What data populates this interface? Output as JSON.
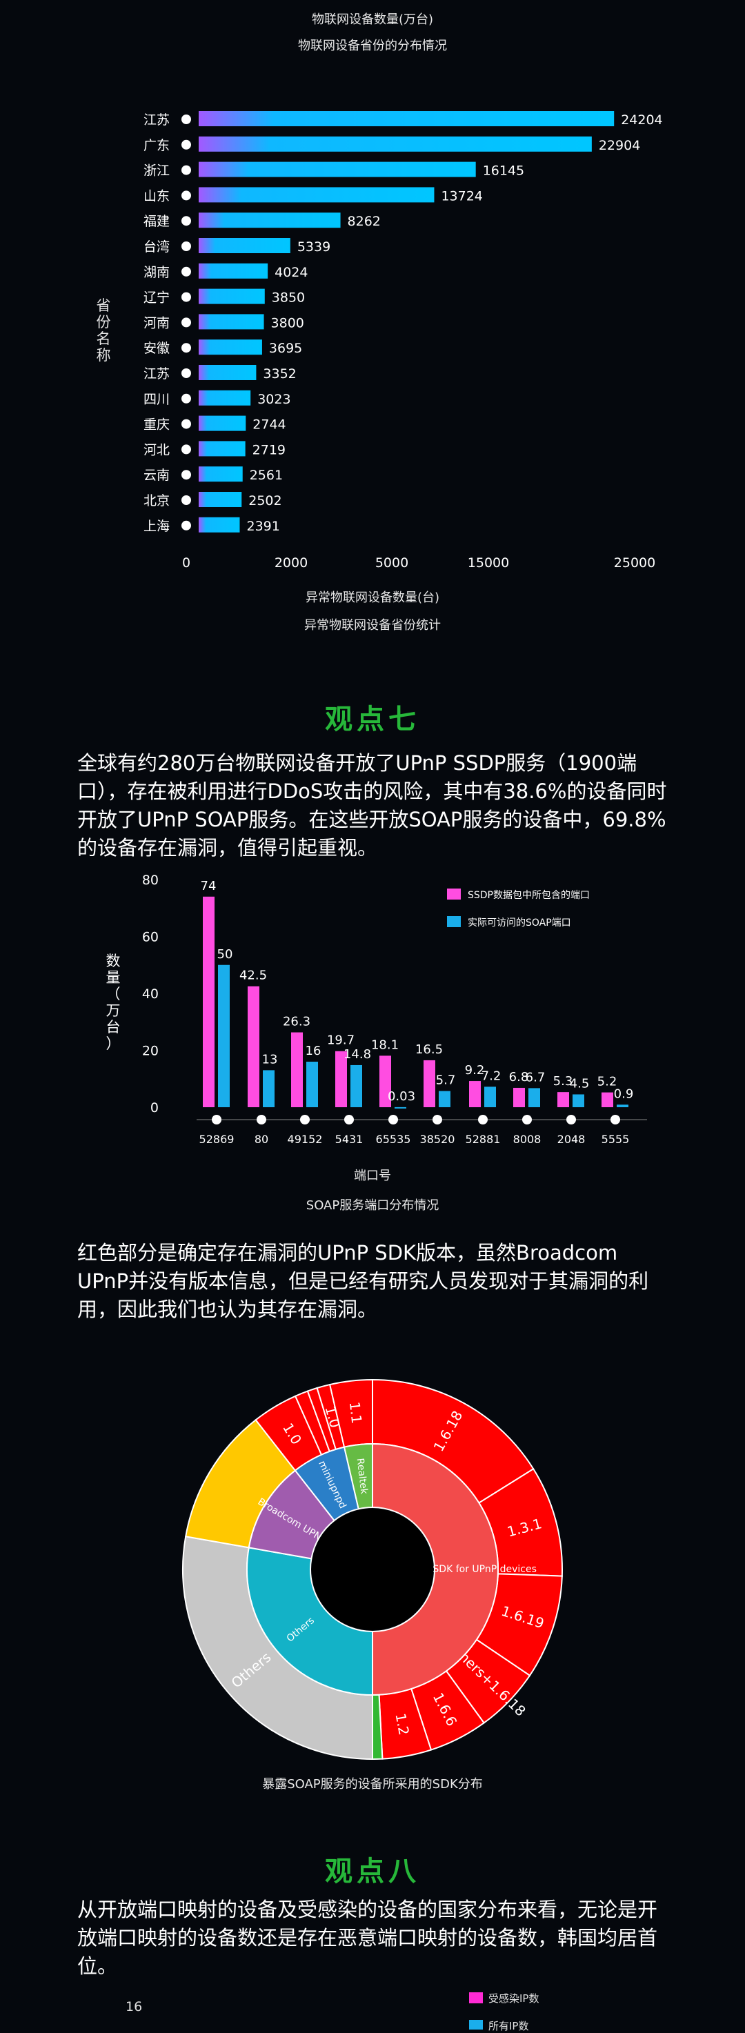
{
  "chart1": {
    "title_top": "物联网设备数量(万台)",
    "subtitle_top": "物联网设备省份的分布情况",
    "ylabel": "省份名称",
    "xlabel": "异常物联网设备数量(台)",
    "caption": "异常物联网设备省份统计",
    "colors": {
      "start": "#a259ff",
      "end": "#00c6ff"
    }
  },
  "heading7": "观点七",
  "para7": "全球有约280万台物联网设备开放了UPnP SSDP服务（1900端口），存在被利用进行DDoS攻击的风险，其中有38.6%的设备同时开放了UPnP SOAP服务。在这些开放SOAP服务的设备中，69.8%的设备存在漏洞，值得引起重视。",
  "chart2": {
    "ylabel": "数量（万台）",
    "xlabel": "端口号",
    "caption": "SOAP服务端口分布情况",
    "colors": {
      "ssdp": "#ff4de1",
      "soap": "#1aaeeb"
    }
  },
  "para_sdk": "红色部分是确定存在漏洞的UPnP SDK版本，虽然Broadcom UPnP并没有版本信息，但是已经有研究人员发现对于其漏洞的利用，因此我们也认为其存在漏洞。",
  "chart3": {
    "caption": "暴露SOAP服务的设备所采用的SDK分布"
  },
  "heading8": "观点八",
  "para8": "从开放端口映射的设备及受感染的设备的国家分布来看，无论是开放端口映射的设备数还是存在恶意端口映射的设备数，韩国均居首位。",
  "chart4": {
    "y_top_tick": "16",
    "legend": [
      "受感染IP数",
      "所有IP数"
    ],
    "colors": {
      "infected": "#ff2ad4",
      "all": "#1aaeeb"
    }
  },
  "chart_data": [
    {
      "type": "bar",
      "orientation": "horizontal",
      "categories": [
        "江苏",
        "广东",
        "浙江",
        "山东",
        "福建",
        "台湾",
        "湖南",
        "辽宁",
        "河南",
        "安徽",
        "江苏",
        "四川",
        "重庆",
        "河北",
        "云南",
        "北京",
        "上海"
      ],
      "values": [
        24204,
        22904,
        16145,
        13724,
        8262,
        5339,
        4024,
        3850,
        3800,
        3695,
        3352,
        3023,
        2744,
        2719,
        2561,
        2502,
        2391
      ],
      "x_ticks": [
        "0",
        "2000",
        "5000",
        "15000",
        "25000"
      ],
      "title": "物联网设备数量(万台)",
      "xlabel": "异常物联网设备数量(台)",
      "ylabel": "省份名称"
    },
    {
      "type": "bar",
      "categories": [
        "52869",
        "80",
        "49152",
        "5431",
        "65535",
        "38520",
        "52881",
        "8008",
        "2048",
        "5555"
      ],
      "series": [
        {
          "name": "SSDP数据包中所包含的端口",
          "values": [
            74,
            42.5,
            26.3,
            19.7,
            18.1,
            16.5,
            9.2,
            6.8,
            5.3,
            5.2
          ]
        },
        {
          "name": "实际可访问的SOAP端口",
          "values": [
            50,
            13,
            16,
            14.8,
            0.03,
            5.7,
            7.2,
            6.7,
            4.5,
            0.9
          ]
        }
      ],
      "y_ticks": [
        "0",
        "20",
        "40",
        "60",
        "80"
      ],
      "xlabel": "端口号",
      "ylabel": "数量（万台）",
      "legend": "top-right"
    },
    {
      "type": "pie",
      "subtype": "sunburst",
      "inner": [
        {
          "label": "Portale SDK for UPnP devices",
          "value": 180,
          "color": "#f24b4b"
        },
        {
          "label": "Others",
          "value": 100,
          "color": "#13b2c7"
        },
        {
          "label": "Broadcom UPNP",
          "value": 42,
          "color": "#a05cae"
        },
        {
          "label": "miniupnpd",
          "value": 25,
          "color": "#2a7fc8"
        },
        {
          "label": "Realtek",
          "value": 13,
          "color": "#66bb44"
        }
      ],
      "outer": [
        {
          "label": "1.6.18",
          "value": 58,
          "color": "#ff0000"
        },
        {
          "label": "1.3.1",
          "value": 34,
          "color": "#ff0000"
        },
        {
          "label": "1.6.19",
          "value": 32,
          "color": "#ff0000"
        },
        {
          "label": "Others+1.6.18",
          "value": 20,
          "color": "#ff0000"
        },
        {
          "label": "1.6.6",
          "value": 18,
          "color": "#ff0000"
        },
        {
          "label": "1.2",
          "value": 15,
          "color": "#ff0000"
        },
        {
          "label": "",
          "value": 3,
          "color": "#33b833"
        },
        {
          "label": "Others",
          "value": 100,
          "color": "#c7c7c7"
        },
        {
          "label": "",
          "value": 42,
          "color": "#ffc800"
        },
        {
          "label": "1.0",
          "value": 14,
          "color": "#ff0000"
        },
        {
          "label": "",
          "value": 4,
          "color": "#ff0000"
        },
        {
          "label": "",
          "value": 3,
          "color": "#ff0000"
        },
        {
          "label": "1.0",
          "value": 4,
          "color": "#ff0000"
        },
        {
          "label": "1.1",
          "value": 13,
          "color": "#ff0000"
        }
      ]
    }
  ]
}
